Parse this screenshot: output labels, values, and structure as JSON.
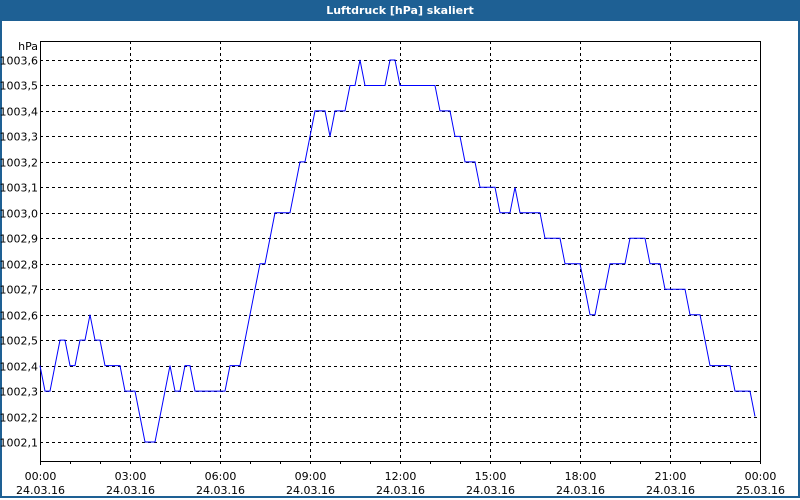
{
  "window": {
    "title": "Luftdruck [hPa] skaliert"
  },
  "chart_data": {
    "type": "line",
    "title": "Luftdruck [hPa] skaliert",
    "ylabel": "hPa",
    "xlabel": "",
    "ylim": [
      1002.1,
      1003.6
    ],
    "grid": true,
    "line_color": "#0000ff",
    "y_ticks": [
      "1002,1",
      "1002,2",
      "1002,3",
      "1002,4",
      "1002,5",
      "1002,6",
      "1002,7",
      "1002,8",
      "1002,9",
      "1003,0",
      "1003,1",
      "1003,2",
      "1003,3",
      "1003,4",
      "1003,5",
      "1003,6"
    ],
    "x_ticks": [
      {
        "time": "00:00",
        "date": "24.03.16"
      },
      {
        "time": "03:00",
        "date": "24.03.16"
      },
      {
        "time": "06:00",
        "date": "24.03.16"
      },
      {
        "time": "09:00",
        "date": "24.03.16"
      },
      {
        "time": "12:00",
        "date": "24.03.16"
      },
      {
        "time": "15:00",
        "date": "24.03.16"
      },
      {
        "time": "18:00",
        "date": "24.03.16"
      },
      {
        "time": "21:00",
        "date": "24.03.16"
      },
      {
        "time": "00:00",
        "date": "25.03.16"
      }
    ],
    "xlim": [
      "24.03.16 00:00",
      "25.03.16 00:00"
    ],
    "points": [
      [
        "00:00",
        1002.4
      ],
      [
        "00:10",
        1002.3
      ],
      [
        "00:20",
        1002.3
      ],
      [
        "00:40",
        1002.5
      ],
      [
        "00:50",
        1002.5
      ],
      [
        "01:00",
        1002.4
      ],
      [
        "01:10",
        1002.4
      ],
      [
        "01:20",
        1002.5
      ],
      [
        "01:30",
        1002.5
      ],
      [
        "01:40",
        1002.6
      ],
      [
        "01:50",
        1002.5
      ],
      [
        "02:00",
        1002.5
      ],
      [
        "02:10",
        1002.4
      ],
      [
        "02:40",
        1002.4
      ],
      [
        "02:50",
        1002.3
      ],
      [
        "03:10",
        1002.3
      ],
      [
        "03:30",
        1002.1
      ],
      [
        "03:50",
        1002.1
      ],
      [
        "04:20",
        1002.4
      ],
      [
        "04:30",
        1002.3
      ],
      [
        "04:40",
        1002.3
      ],
      [
        "04:50",
        1002.4
      ],
      [
        "05:00",
        1002.4
      ],
      [
        "05:10",
        1002.3
      ],
      [
        "06:10",
        1002.3
      ],
      [
        "06:20",
        1002.4
      ],
      [
        "06:40",
        1002.4
      ],
      [
        "07:20",
        1002.8
      ],
      [
        "07:30",
        1002.8
      ],
      [
        "07:50",
        1003.0
      ],
      [
        "08:20",
        1003.0
      ],
      [
        "08:40",
        1003.2
      ],
      [
        "08:50",
        1003.2
      ],
      [
        "09:10",
        1003.4
      ],
      [
        "09:30",
        1003.4
      ],
      [
        "09:40",
        1003.3
      ],
      [
        "09:50",
        1003.4
      ],
      [
        "10:10",
        1003.4
      ],
      [
        "10:20",
        1003.5
      ],
      [
        "10:30",
        1003.5
      ],
      [
        "10:40",
        1003.6
      ],
      [
        "10:50",
        1003.5
      ],
      [
        "11:30",
        1003.5
      ],
      [
        "11:40",
        1003.6
      ],
      [
        "11:50",
        1003.6
      ],
      [
        "12:00",
        1003.5
      ],
      [
        "13:10",
        1003.5
      ],
      [
        "13:20",
        1003.4
      ],
      [
        "13:40",
        1003.4
      ],
      [
        "13:50",
        1003.3
      ],
      [
        "14:00",
        1003.3
      ],
      [
        "14:10",
        1003.2
      ],
      [
        "14:30",
        1003.2
      ],
      [
        "14:40",
        1003.1
      ],
      [
        "15:10",
        1003.1
      ],
      [
        "15:20",
        1003.0
      ],
      [
        "15:40",
        1003.0
      ],
      [
        "15:50",
        1003.1
      ],
      [
        "16:00",
        1003.0
      ],
      [
        "16:40",
        1003.0
      ],
      [
        "16:50",
        1002.9
      ],
      [
        "17:20",
        1002.9
      ],
      [
        "17:30",
        1002.8
      ],
      [
        "18:00",
        1002.8
      ],
      [
        "18:20",
        1002.6
      ],
      [
        "18:30",
        1002.6
      ],
      [
        "18:40",
        1002.7
      ],
      [
        "18:50",
        1002.7
      ],
      [
        "19:00",
        1002.8
      ],
      [
        "19:30",
        1002.8
      ],
      [
        "19:40",
        1002.9
      ],
      [
        "20:10",
        1002.9
      ],
      [
        "20:20",
        1002.8
      ],
      [
        "20:40",
        1002.8
      ],
      [
        "20:50",
        1002.7
      ],
      [
        "21:30",
        1002.7
      ],
      [
        "21:40",
        1002.6
      ],
      [
        "22:00",
        1002.6
      ],
      [
        "22:20",
        1002.4
      ],
      [
        "23:00",
        1002.4
      ],
      [
        "23:10",
        1002.3
      ],
      [
        "23:40",
        1002.3
      ],
      [
        "23:50",
        1002.2
      ]
    ]
  }
}
